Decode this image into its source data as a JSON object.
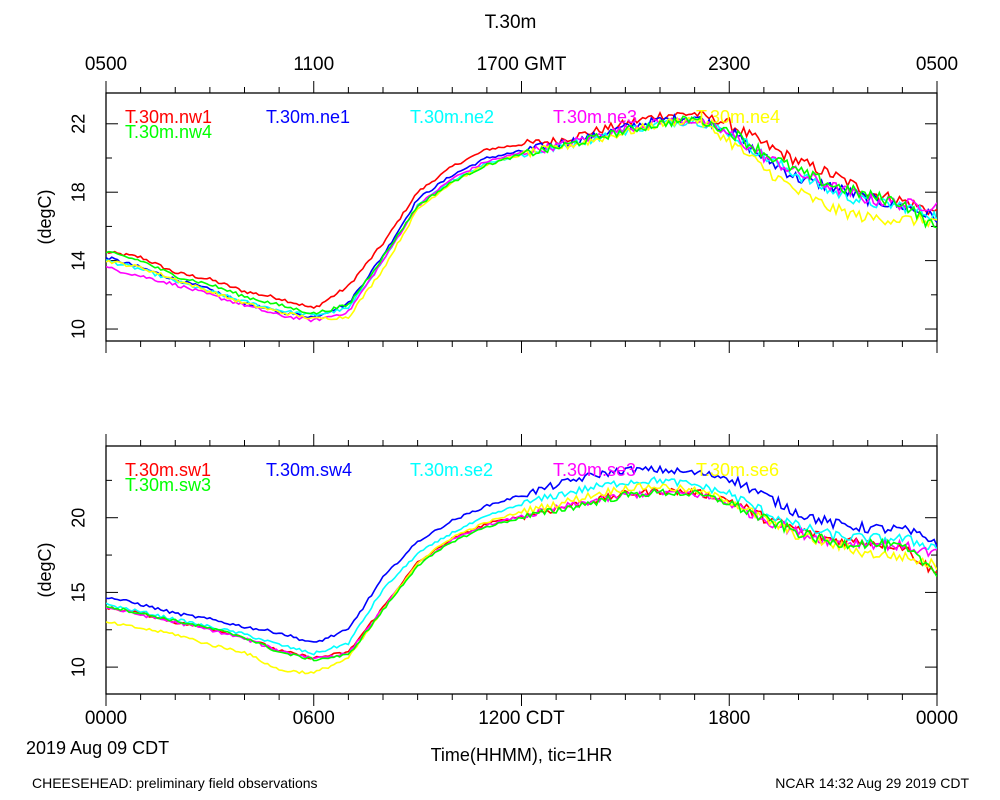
{
  "header": {
    "title": "T.30m",
    "top_ticks": [
      "0500",
      "1100",
      "1700 GMT",
      "2300",
      "0500"
    ]
  },
  "footer": {
    "date_label": "2019 Aug 09 CDT",
    "xlabel": "Time(HHMM), tic=1HR",
    "left_note": "CHEESEHEAD: preliminary field observations",
    "right_note": "NCAR 14:32 Aug 29 2019 CDT"
  },
  "chart_data": [
    {
      "type": "line",
      "id": "top",
      "title": "T.30m",
      "ylabel": "(degC)",
      "ylim": [
        9.3,
        23.8
      ],
      "yticks": [
        10,
        14,
        18,
        22
      ],
      "xlim": [
        0,
        24
      ],
      "xticks": [
        0,
        6,
        12,
        18,
        24
      ],
      "x_tick_labels": [
        "0000",
        "0600",
        "1200 CDT",
        "1800",
        "0000"
      ],
      "grid": false,
      "legend": "top-left inside plot, two rows",
      "series": [
        {
          "name": "T.30m.nw1",
          "color": "#ff0000",
          "x": [
            0,
            1,
            2,
            3,
            4,
            5,
            6,
            7,
            8,
            9,
            10,
            11,
            12,
            13,
            14,
            15,
            16,
            17,
            18,
            19,
            20,
            21,
            22,
            23,
            24
          ],
          "values": [
            14.5,
            14.2,
            13.3,
            12.9,
            12.2,
            11.8,
            11.2,
            12.5,
            15.0,
            18.0,
            19.5,
            20.5,
            20.8,
            21.0,
            21.5,
            22.0,
            22.5,
            22.6,
            22.0,
            20.8,
            19.8,
            19.0,
            18.0,
            17.5,
            16.8
          ]
        },
        {
          "name": "T.30m.ne1",
          "color": "#0000ff",
          "x": [
            0,
            1,
            2,
            3,
            4,
            5,
            6,
            7,
            8,
            9,
            10,
            11,
            12,
            13,
            14,
            15,
            16,
            17,
            18,
            19,
            20,
            21,
            22,
            23,
            24
          ],
          "values": [
            14.2,
            13.6,
            12.9,
            12.3,
            11.5,
            11.0,
            10.7,
            11.5,
            14.3,
            17.6,
            19.0,
            20.0,
            20.4,
            20.8,
            21.2,
            21.8,
            22.2,
            22.4,
            21.6,
            20.0,
            18.8,
            18.3,
            17.6,
            17.2,
            16.5
          ]
        },
        {
          "name": "T.30m.ne2",
          "color": "#00ffff",
          "x": [
            0,
            1,
            2,
            3,
            4,
            5,
            6,
            7,
            8,
            9,
            10,
            11,
            12,
            13,
            14,
            15,
            16,
            17,
            18,
            19,
            20,
            21,
            22,
            23,
            24
          ],
          "values": [
            14.0,
            13.5,
            12.8,
            12.2,
            11.6,
            11.1,
            10.8,
            11.2,
            14.0,
            17.2,
            18.7,
            19.7,
            20.2,
            20.6,
            21.1,
            21.6,
            22.0,
            22.2,
            21.5,
            20.1,
            19.0,
            18.0,
            17.4,
            17.2,
            16.6
          ]
        },
        {
          "name": "T.30m.ne3",
          "color": "#ff00ff",
          "x": [
            0,
            1,
            2,
            3,
            4,
            5,
            6,
            7,
            8,
            9,
            10,
            11,
            12,
            13,
            14,
            15,
            16,
            17,
            18,
            19,
            20,
            21,
            22,
            23,
            24
          ],
          "values": [
            13.6,
            13.1,
            12.6,
            12.0,
            11.4,
            10.8,
            10.5,
            11.0,
            14.0,
            17.2,
            18.8,
            19.8,
            20.3,
            20.7,
            21.2,
            21.7,
            22.1,
            22.2,
            21.4,
            20.1,
            19.1,
            18.3,
            17.6,
            17.3,
            17.2
          ]
        },
        {
          "name": "T.30m.ne4",
          "color": "#ffff00",
          "x": [
            0,
            1,
            2,
            3,
            4,
            5,
            6,
            7,
            8,
            9,
            10,
            11,
            12,
            13,
            14,
            15,
            16,
            17,
            18,
            19,
            20,
            21,
            22,
            23,
            24
          ],
          "values": [
            14.0,
            13.6,
            12.9,
            12.2,
            11.5,
            11.0,
            10.6,
            10.7,
            13.5,
            17.0,
            18.6,
            19.6,
            20.2,
            20.6,
            21.0,
            21.5,
            22.0,
            22.3,
            21.0,
            19.4,
            18.0,
            17.0,
            16.5,
            16.4,
            16.3
          ]
        },
        {
          "name": "T.30m.nw4",
          "color": "#00ff00",
          "x": [
            0,
            1,
            2,
            3,
            4,
            5,
            6,
            7,
            8,
            9,
            10,
            11,
            12,
            13,
            14,
            15,
            16,
            17,
            18,
            19,
            20,
            21,
            22,
            23,
            24
          ],
          "values": [
            14.5,
            14.0,
            13.1,
            12.6,
            11.9,
            11.4,
            10.9,
            11.4,
            14.2,
            17.2,
            18.6,
            19.6,
            20.2,
            20.6,
            21.1,
            21.6,
            22.0,
            22.3,
            21.6,
            20.3,
            19.2,
            18.4,
            17.8,
            17.4,
            15.8
          ]
        }
      ]
    },
    {
      "type": "line",
      "id": "bottom",
      "ylabel": "(degC)",
      "ylim": [
        8.2,
        24.8
      ],
      "yticks": [
        10,
        15,
        20
      ],
      "xlim": [
        0,
        24
      ],
      "xticks": [
        0,
        6,
        12,
        18,
        24
      ],
      "x_tick_labels": [
        "0000",
        "0600",
        "1200 CDT",
        "1800",
        "0000"
      ],
      "grid": false,
      "legend": "top-left inside plot, two rows",
      "series": [
        {
          "name": "T.30m.sw1",
          "color": "#ff0000",
          "x": [
            0,
            1,
            2,
            3,
            4,
            5,
            6,
            7,
            8,
            9,
            10,
            11,
            12,
            13,
            14,
            15,
            16,
            17,
            18,
            19,
            20,
            21,
            22,
            23,
            24
          ],
          "values": [
            14.0,
            13.6,
            13.0,
            12.6,
            12.0,
            11.1,
            10.6,
            11.0,
            14.0,
            17.0,
            18.6,
            19.6,
            20.1,
            20.6,
            21.1,
            21.6,
            21.8,
            21.7,
            21.2,
            20.0,
            19.2,
            18.5,
            18.4,
            18.1,
            16.2
          ]
        },
        {
          "name": "T.30m.sw4",
          "color": "#0000ff",
          "x": [
            0,
            1,
            2,
            3,
            4,
            5,
            6,
            7,
            8,
            9,
            10,
            11,
            12,
            13,
            14,
            15,
            16,
            17,
            18,
            19,
            20,
            21,
            22,
            23,
            24
          ],
          "values": [
            14.7,
            14.2,
            13.6,
            13.2,
            12.7,
            12.3,
            11.6,
            12.5,
            16.0,
            18.4,
            19.8,
            20.8,
            21.5,
            22.2,
            22.8,
            23.2,
            23.2,
            23.0,
            22.7,
            21.5,
            20.3,
            19.6,
            19.3,
            19.2,
            18.4
          ]
        },
        {
          "name": "T.30m.se2",
          "color": "#00ffff",
          "x": [
            0,
            1,
            2,
            3,
            4,
            5,
            6,
            7,
            8,
            9,
            10,
            11,
            12,
            13,
            14,
            15,
            16,
            17,
            18,
            19,
            20,
            21,
            22,
            23,
            24
          ],
          "values": [
            14.2,
            13.7,
            13.2,
            12.7,
            12.2,
            11.5,
            10.9,
            11.6,
            15.2,
            17.6,
            19.0,
            20.1,
            20.9,
            21.5,
            22.0,
            22.4,
            22.5,
            22.2,
            21.6,
            20.4,
            19.4,
            18.8,
            18.6,
            18.6,
            18.0
          ]
        },
        {
          "name": "T.30m.se3",
          "color": "#ff00ff",
          "x": [
            0,
            1,
            2,
            3,
            4,
            5,
            6,
            7,
            8,
            9,
            10,
            11,
            12,
            13,
            14,
            15,
            16,
            17,
            18,
            19,
            20,
            21,
            22,
            23,
            24
          ],
          "values": [
            14.0,
            13.5,
            13.0,
            12.5,
            11.9,
            11.1,
            10.6,
            10.9,
            13.9,
            16.9,
            18.5,
            19.5,
            20.1,
            20.6,
            21.1,
            21.5,
            21.7,
            21.6,
            21.0,
            19.9,
            19.0,
            18.4,
            18.3,
            18.1,
            17.6
          ]
        },
        {
          "name": "T.30m.se6",
          "color": "#ffff00",
          "x": [
            0,
            1,
            2,
            3,
            4,
            5,
            6,
            7,
            8,
            9,
            10,
            11,
            12,
            13,
            14,
            15,
            16,
            17,
            18,
            19,
            20,
            21,
            22,
            23,
            24
          ],
          "values": [
            13.0,
            12.6,
            12.2,
            11.5,
            11.0,
            9.8,
            9.6,
            10.6,
            13.8,
            17.0,
            18.7,
            19.7,
            20.4,
            20.9,
            21.5,
            22.0,
            22.1,
            21.8,
            21.2,
            19.9,
            18.8,
            18.2,
            17.6,
            17.4,
            16.8
          ]
        },
        {
          "name": "T.30m.sw3",
          "color": "#00ff00",
          "x": [
            0,
            1,
            2,
            3,
            4,
            5,
            6,
            7,
            8,
            9,
            10,
            11,
            12,
            13,
            14,
            15,
            16,
            17,
            18,
            19,
            20,
            21,
            22,
            23,
            24
          ],
          "values": [
            14.1,
            13.6,
            13.1,
            12.6,
            12.0,
            11.0,
            10.5,
            10.8,
            13.8,
            16.8,
            18.4,
            19.4,
            20.0,
            20.5,
            21.0,
            21.5,
            21.7,
            21.6,
            21.0,
            19.9,
            19.0,
            18.3,
            18.3,
            18.0,
            16.4
          ]
        }
      ]
    }
  ]
}
